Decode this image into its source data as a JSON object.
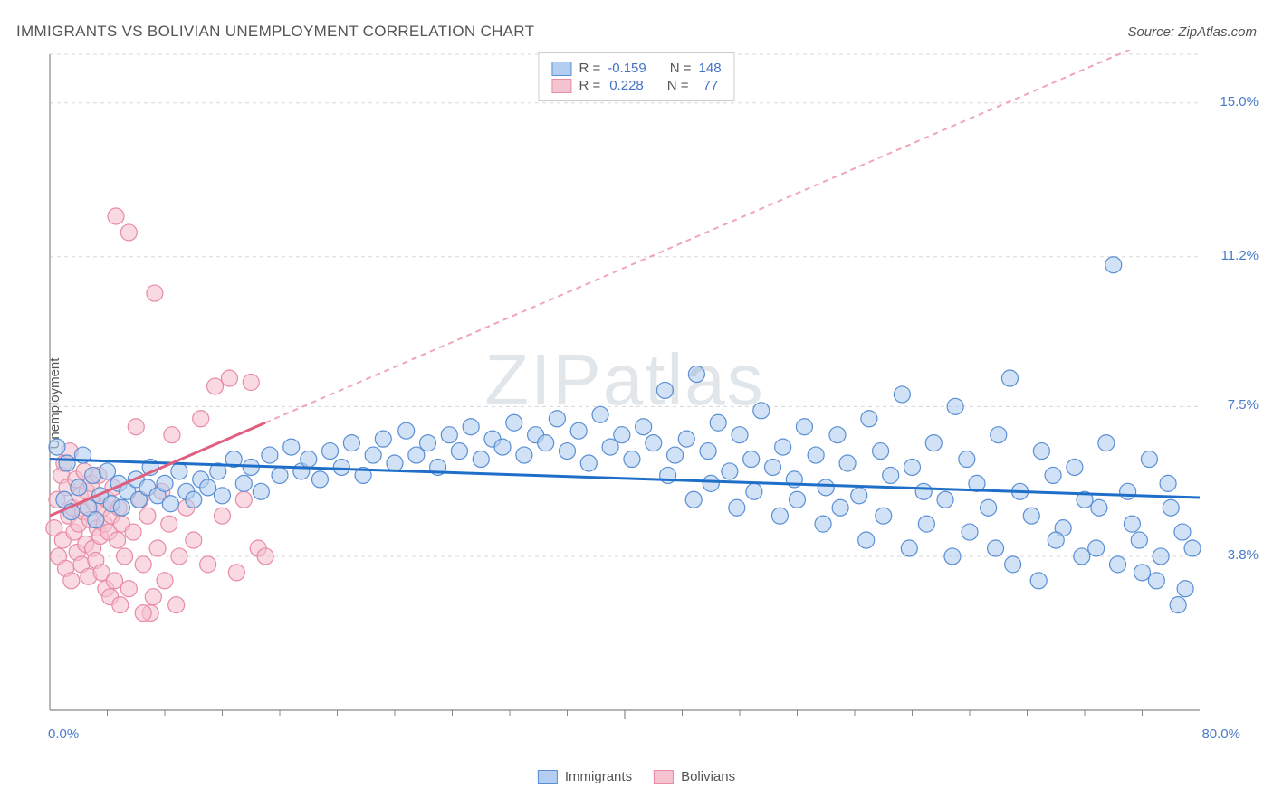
{
  "header": {
    "title": "IMMIGRANTS VS BOLIVIAN UNEMPLOYMENT CORRELATION CHART",
    "source": "Source: ZipAtlas.com"
  },
  "watermark": {
    "zip": "ZIP",
    "atlas": "atlas"
  },
  "chart": {
    "type": "scatter",
    "xlim": [
      0,
      80
    ],
    "ylim": [
      0,
      16.2
    ],
    "x_label_min": "0.0%",
    "x_label_max": "80.0%",
    "y_label": "Unemployment",
    "y_ticks": [
      {
        "value": 15.0,
        "label": "15.0%"
      },
      {
        "value": 11.2,
        "label": "11.2%"
      },
      {
        "value": 7.5,
        "label": "7.5%"
      },
      {
        "value": 3.8,
        "label": "3.8%"
      }
    ],
    "x_minor_ticks": [
      4,
      8,
      12,
      16,
      20,
      24,
      28,
      32,
      36,
      44,
      48,
      52,
      56,
      60,
      64,
      68,
      72,
      76
    ],
    "x_major_ticks": [
      40
    ],
    "grid_color": "#d8d8d8",
    "axis_color": "#888888",
    "background_color": "#ffffff",
    "marker_radius": 9,
    "series": {
      "immigrants": {
        "label": "Immigrants",
        "color_fill": "#b3cef0",
        "color_stroke": "#5a8fd4",
        "fill_opacity": 0.6,
        "R": "-0.159",
        "N": "148",
        "trend": {
          "x1": 0,
          "y1": 6.2,
          "x2": 80,
          "y2": 5.25,
          "color": "#1f6fc9",
          "width": 3,
          "dash": "none"
        },
        "points": [
          [
            0.5,
            6.5
          ],
          [
            1,
            5.2
          ],
          [
            1.2,
            6.1
          ],
          [
            1.5,
            4.9
          ],
          [
            2,
            5.5
          ],
          [
            2.3,
            6.3
          ],
          [
            2.7,
            5.0
          ],
          [
            3,
            5.8
          ],
          [
            3.2,
            4.7
          ],
          [
            3.5,
            5.3
          ],
          [
            4,
            5.9
          ],
          [
            4.3,
            5.1
          ],
          [
            4.8,
            5.6
          ],
          [
            5,
            5.0
          ],
          [
            5.4,
            5.4
          ],
          [
            6,
            5.7
          ],
          [
            6.2,
            5.2
          ],
          [
            6.8,
            5.5
          ],
          [
            7,
            6.0
          ],
          [
            7.5,
            5.3
          ],
          [
            8,
            5.6
          ],
          [
            8.4,
            5.1
          ],
          [
            9,
            5.9
          ],
          [
            9.5,
            5.4
          ],
          [
            10,
            5.2
          ],
          [
            10.5,
            5.7
          ],
          [
            11,
            5.5
          ],
          [
            11.7,
            5.9
          ],
          [
            12,
            5.3
          ],
          [
            12.8,
            6.2
          ],
          [
            13.5,
            5.6
          ],
          [
            14,
            6.0
          ],
          [
            14.7,
            5.4
          ],
          [
            15.3,
            6.3
          ],
          [
            16,
            5.8
          ],
          [
            16.8,
            6.5
          ],
          [
            17.5,
            5.9
          ],
          [
            18,
            6.2
          ],
          [
            18.8,
            5.7
          ],
          [
            19.5,
            6.4
          ],
          [
            20.3,
            6.0
          ],
          [
            21,
            6.6
          ],
          [
            21.8,
            5.8
          ],
          [
            22.5,
            6.3
          ],
          [
            23.2,
            6.7
          ],
          [
            24,
            6.1
          ],
          [
            24.8,
            6.9
          ],
          [
            25.5,
            6.3
          ],
          [
            26.3,
            6.6
          ],
          [
            27,
            6.0
          ],
          [
            27.8,
            6.8
          ],
          [
            28.5,
            6.4
          ],
          [
            29.3,
            7.0
          ],
          [
            30,
            6.2
          ],
          [
            30.8,
            6.7
          ],
          [
            31.5,
            6.5
          ],
          [
            32.3,
            7.1
          ],
          [
            33,
            6.3
          ],
          [
            33.8,
            6.8
          ],
          [
            34.5,
            6.6
          ],
          [
            35.3,
            7.2
          ],
          [
            36,
            6.4
          ],
          [
            36.8,
            6.9
          ],
          [
            37.5,
            6.1
          ],
          [
            38.3,
            7.3
          ],
          [
            39,
            6.5
          ],
          [
            39.8,
            6.8
          ],
          [
            40.5,
            6.2
          ],
          [
            41.3,
            7.0
          ],
          [
            42,
            6.6
          ],
          [
            42.8,
            7.9
          ],
          [
            43.5,
            6.3
          ],
          [
            44.3,
            6.7
          ],
          [
            45,
            8.3
          ],
          [
            45.8,
            6.4
          ],
          [
            46.5,
            7.1
          ],
          [
            47.3,
            5.9
          ],
          [
            48,
            6.8
          ],
          [
            48.8,
            6.2
          ],
          [
            49.5,
            7.4
          ],
          [
            50.3,
            6.0
          ],
          [
            51,
            6.5
          ],
          [
            51.8,
            5.7
          ],
          [
            52.5,
            7.0
          ],
          [
            53.3,
            6.3
          ],
          [
            54,
            5.5
          ],
          [
            54.8,
            6.8
          ],
          [
            55.5,
            6.1
          ],
          [
            56.3,
            5.3
          ],
          [
            57,
            7.2
          ],
          [
            57.8,
            6.4
          ],
          [
            58.5,
            5.8
          ],
          [
            59.3,
            7.8
          ],
          [
            60,
            6.0
          ],
          [
            60.8,
            5.4
          ],
          [
            61.5,
            6.6
          ],
          [
            62.3,
            5.2
          ],
          [
            63,
            7.5
          ],
          [
            63.8,
            6.2
          ],
          [
            64.5,
            5.6
          ],
          [
            65.3,
            5.0
          ],
          [
            66,
            6.8
          ],
          [
            66.8,
            8.2
          ],
          [
            67.5,
            5.4
          ],
          [
            68.3,
            4.8
          ],
          [
            69,
            6.4
          ],
          [
            69.8,
            5.8
          ],
          [
            70.5,
            4.5
          ],
          [
            71.3,
            6.0
          ],
          [
            72,
            5.2
          ],
          [
            72.8,
            4.0
          ],
          [
            73.5,
            6.6
          ],
          [
            74,
            11.0
          ],
          [
            74.3,
            3.6
          ],
          [
            75,
            5.4
          ],
          [
            75.8,
            4.2
          ],
          [
            76.5,
            6.2
          ],
          [
            77,
            3.2
          ],
          [
            77.3,
            3.8
          ],
          [
            78,
            5.0
          ],
          [
            78.8,
            4.4
          ],
          [
            79,
            3.0
          ],
          [
            79.5,
            4.0
          ],
          [
            78.5,
            2.6
          ],
          [
            77.8,
            5.6
          ],
          [
            76,
            3.4
          ],
          [
            75.3,
            4.6
          ],
          [
            73,
            5.0
          ],
          [
            71.8,
            3.8
          ],
          [
            70,
            4.2
          ],
          [
            68.8,
            3.2
          ],
          [
            67,
            3.6
          ],
          [
            65.8,
            4.0
          ],
          [
            64,
            4.4
          ],
          [
            62.8,
            3.8
          ],
          [
            61,
            4.6
          ],
          [
            59.8,
            4.0
          ],
          [
            58,
            4.8
          ],
          [
            56.8,
            4.2
          ],
          [
            55,
            5.0
          ],
          [
            53.8,
            4.6
          ],
          [
            52,
            5.2
          ],
          [
            50.8,
            4.8
          ],
          [
            49,
            5.4
          ],
          [
            47.8,
            5.0
          ],
          [
            46,
            5.6
          ],
          [
            44.8,
            5.2
          ],
          [
            43,
            5.8
          ]
        ]
      },
      "bolivians": {
        "label": "Bolivians",
        "color_fill": "#f5c2cf",
        "color_stroke": "#e88ba3",
        "fill_opacity": 0.6,
        "R": "0.228",
        "N": "77",
        "trend_solid": {
          "x1": 0,
          "y1": 4.8,
          "x2": 15,
          "y2": 7.1,
          "color": "#e15f7e",
          "width": 3,
          "dash": "none"
        },
        "trend_dash": {
          "x1": 15,
          "y1": 7.1,
          "x2": 77,
          "y2": 16.6,
          "color": "#f0a6b6",
          "width": 2,
          "dash": "6,5"
        },
        "points": [
          [
            0.3,
            4.5
          ],
          [
            0.5,
            5.2
          ],
          [
            0.6,
            3.8
          ],
          [
            0.8,
            5.8
          ],
          [
            0.9,
            4.2
          ],
          [
            1.0,
            6.1
          ],
          [
            1.1,
            3.5
          ],
          [
            1.2,
            5.5
          ],
          [
            1.3,
            4.8
          ],
          [
            1.4,
            6.4
          ],
          [
            1.5,
            3.2
          ],
          [
            1.6,
            5.0
          ],
          [
            1.7,
            4.4
          ],
          [
            1.8,
            5.7
          ],
          [
            1.9,
            3.9
          ],
          [
            2.0,
            4.6
          ],
          [
            2.1,
            5.3
          ],
          [
            2.2,
            3.6
          ],
          [
            2.3,
            4.9
          ],
          [
            2.4,
            5.9
          ],
          [
            2.5,
            4.1
          ],
          [
            2.6,
            5.4
          ],
          [
            2.7,
            3.3
          ],
          [
            2.8,
            4.7
          ],
          [
            2.9,
            5.6
          ],
          [
            3.0,
            4.0
          ],
          [
            3.1,
            5.1
          ],
          [
            3.2,
            3.7
          ],
          [
            3.3,
            4.5
          ],
          [
            3.4,
            5.8
          ],
          [
            3.5,
            4.3
          ],
          [
            3.6,
            3.4
          ],
          [
            3.7,
            5.0
          ],
          [
            3.8,
            4.6
          ],
          [
            3.9,
            3.0
          ],
          [
            4.0,
            5.2
          ],
          [
            4.1,
            4.4
          ],
          [
            4.2,
            2.8
          ],
          [
            4.3,
            4.8
          ],
          [
            4.4,
            5.5
          ],
          [
            4.5,
            3.2
          ],
          [
            4.6,
            12.2
          ],
          [
            4.7,
            4.2
          ],
          [
            4.8,
            5.0
          ],
          [
            4.9,
            2.6
          ],
          [
            5.0,
            4.6
          ],
          [
            5.2,
            3.8
          ],
          [
            5.5,
            11.8
          ],
          [
            5.8,
            4.4
          ],
          [
            6.0,
            7.0
          ],
          [
            6.3,
            5.2
          ],
          [
            6.5,
            3.6
          ],
          [
            6.8,
            4.8
          ],
          [
            7.0,
            2.4
          ],
          [
            7.3,
            10.3
          ],
          [
            7.5,
            4.0
          ],
          [
            7.8,
            5.4
          ],
          [
            8.0,
            3.2
          ],
          [
            8.3,
            4.6
          ],
          [
            8.5,
            6.8
          ],
          [
            9.0,
            3.8
          ],
          [
            9.5,
            5.0
          ],
          [
            10.0,
            4.2
          ],
          [
            10.5,
            7.2
          ],
          [
            11.0,
            3.6
          ],
          [
            11.5,
            8.0
          ],
          [
            12.0,
            4.8
          ],
          [
            12.5,
            8.2
          ],
          [
            13.0,
            3.4
          ],
          [
            13.5,
            5.2
          ],
          [
            14.0,
            8.1
          ],
          [
            14.5,
            4.0
          ],
          [
            15.0,
            3.8
          ],
          [
            7.2,
            2.8
          ],
          [
            8.8,
            2.6
          ],
          [
            6.5,
            2.4
          ],
          [
            5.5,
            3.0
          ]
        ]
      }
    }
  },
  "legend_top": {
    "R_label": "R =",
    "N_label": "N ="
  }
}
